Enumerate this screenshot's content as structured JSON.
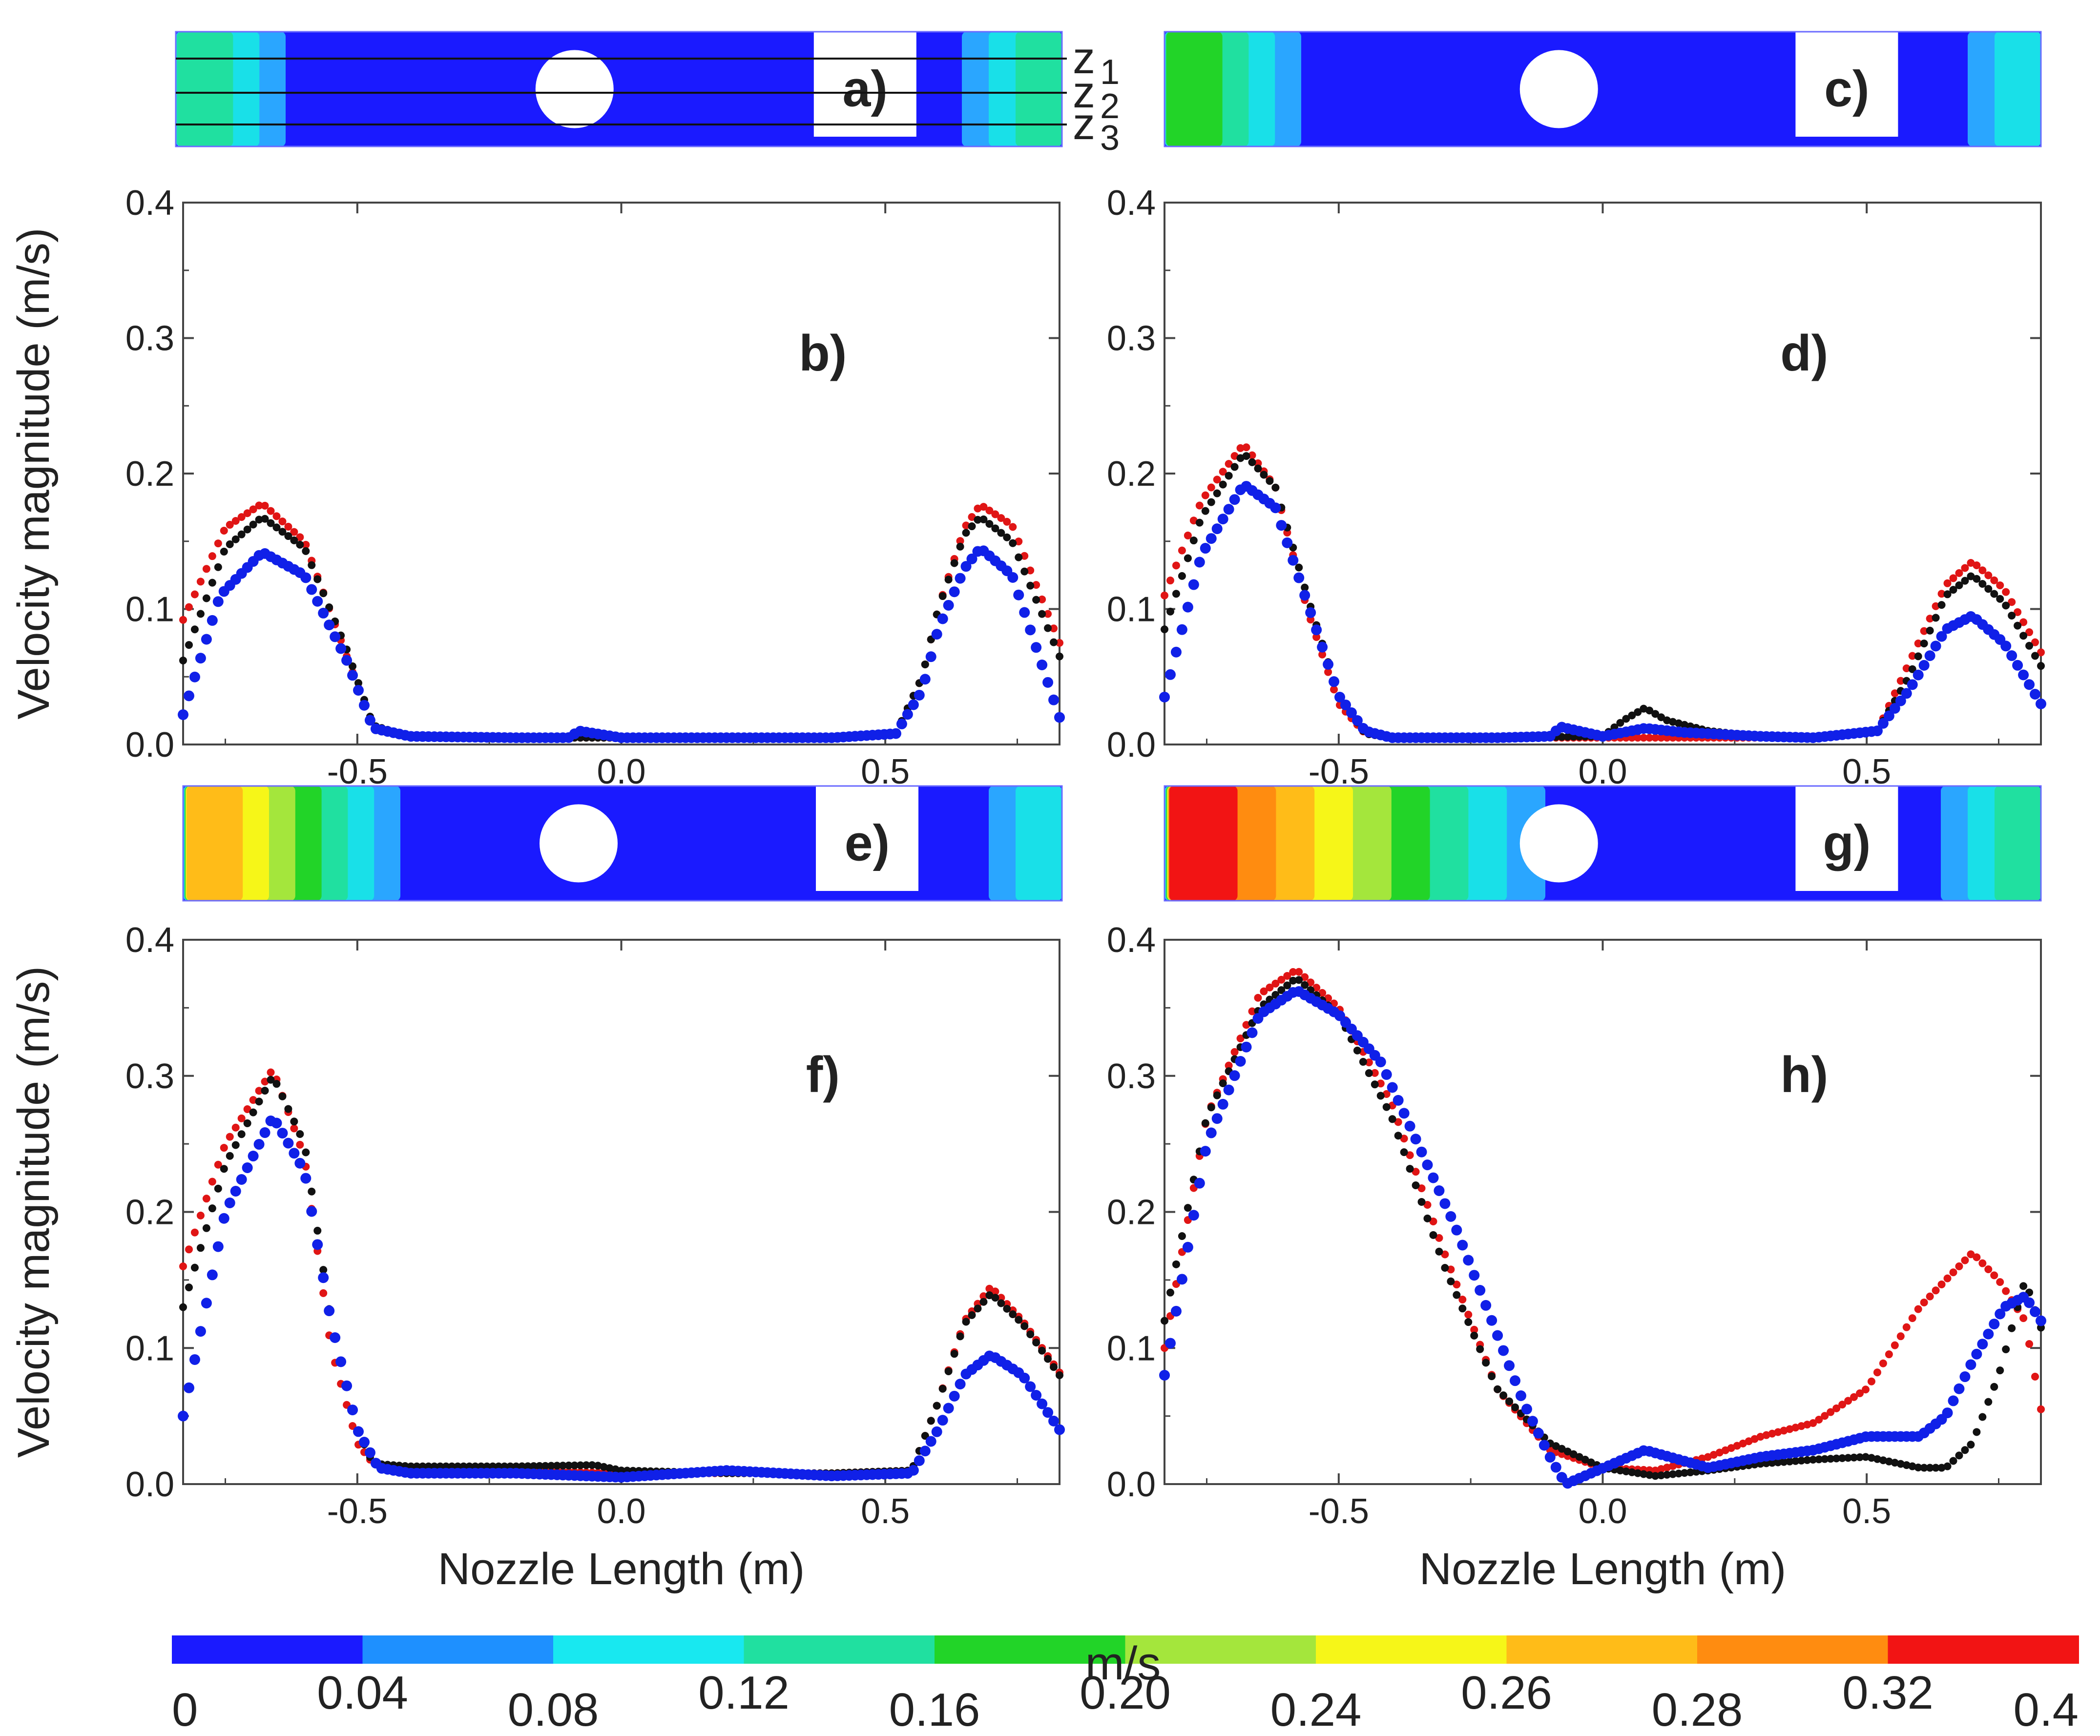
{
  "colors": {
    "blue": "#1020e8",
    "red": "#e01515",
    "black": "#111111",
    "frame": "#444444"
  },
  "colormap": {
    "unit": "m/s",
    "ticks": [
      "0",
      "0.04",
      "0.08",
      "0.12",
      "0.16",
      "0.20",
      "0.24",
      "0.26",
      "0.28",
      "0.32",
      "0.4"
    ],
    "colors": [
      "#1a1aff",
      "#1e90ff",
      "#18e8f0",
      "#20e0a0",
      "#22d428",
      "#a4e63c",
      "#f6f618",
      "#ffbc18",
      "#ff8c10",
      "#f21414"
    ]
  },
  "contours": [
    {
      "label": "a)",
      "zlabels": [
        "z",
        "z",
        "z"
      ],
      "zsub": [
        "1",
        "2",
        "3"
      ],
      "left_bands": [
        "#2aa6ff",
        "#19e0e8",
        "#20e0a0"
      ],
      "right_bands": [
        "#2aa6ff",
        "#19e0e8",
        "#20e0a0"
      ]
    },
    {
      "label": "c)",
      "left_bands": [
        "#2aa6ff",
        "#19e0e8",
        "#20e0a0",
        "#22d428"
      ],
      "right_bands": [
        "#2aa6ff",
        "#19e0e8"
      ]
    },
    {
      "label": "e)",
      "left_bands": [
        "#2aa6ff",
        "#19e0e8",
        "#20e0a0",
        "#22d428",
        "#a4e63c",
        "#f6f618",
        "#ffbc18"
      ],
      "right_bands": [
        "#2aa6ff",
        "#19e0e8"
      ]
    },
    {
      "label": "g)",
      "left_bands": [
        "#2aa6ff",
        "#19e0e8",
        "#20e0a0",
        "#22d428",
        "#a4e63c",
        "#f6f618",
        "#ffbc18",
        "#ff8c10",
        "#f21414"
      ],
      "right_bands": [
        "#2aa6ff",
        "#19e0e8",
        "#20e0a0"
      ]
    }
  ],
  "chart_data": [
    {
      "type": "scatter",
      "panel": "b)",
      "xlabel": "",
      "ylabel": "Velocity magnitude (m/s)",
      "xlim": [
        -0.83,
        0.83
      ],
      "ylim": [
        0,
        0.4
      ],
      "xticks": [
        "-0.5",
        "0.0",
        "0.5"
      ],
      "yticks": [
        "0.0",
        "0.1",
        "0.2",
        "0.3",
        "0.4"
      ],
      "series": [
        {
          "color": "red",
          "x": [
            -0.83,
            -0.75,
            -0.68,
            -0.6,
            -0.52,
            -0.47,
            -0.4,
            -0.2,
            0,
            0.2,
            0.4,
            0.52,
            0.57,
            0.6,
            0.65,
            0.68,
            0.74,
            0.83
          ],
          "y": [
            0.092,
            0.16,
            0.178,
            0.15,
            0.065,
            0.012,
            0.006,
            0.005,
            0.005,
            0.005,
            0.005,
            0.008,
            0.05,
            0.1,
            0.16,
            0.177,
            0.162,
            0.075
          ]
        },
        {
          "color": "black",
          "x": [
            -0.83,
            -0.75,
            -0.68,
            -0.6,
            -0.52,
            -0.47,
            -0.4,
            -0.2,
            0,
            0.2,
            0.4,
            0.52,
            0.57,
            0.6,
            0.65,
            0.68,
            0.74,
            0.83
          ],
          "y": [
            0.062,
            0.145,
            0.168,
            0.145,
            0.07,
            0.014,
            0.006,
            0.005,
            0.005,
            0.005,
            0.005,
            0.008,
            0.05,
            0.1,
            0.155,
            0.168,
            0.15,
            0.065
          ]
        },
        {
          "color": "blue",
          "x": [
            -0.83,
            -0.76,
            -0.68,
            -0.6,
            -0.52,
            -0.47,
            -0.4,
            -0.2,
            -0.1,
            -0.08,
            0,
            0.2,
            0.4,
            0.52,
            0.57,
            0.6,
            0.65,
            0.68,
            0.74,
            0.83
          ],
          "y": [
            0.022,
            0.11,
            0.142,
            0.125,
            0.062,
            0.012,
            0.006,
            0.005,
            0.005,
            0.01,
            0.005,
            0.005,
            0.005,
            0.008,
            0.04,
            0.085,
            0.13,
            0.145,
            0.125,
            0.02
          ]
        }
      ]
    },
    {
      "type": "scatter",
      "panel": "d)",
      "xlabel": "",
      "ylabel": "",
      "xlim": [
        -0.83,
        0.83
      ],
      "ylim": [
        0,
        0.4
      ],
      "xticks": [
        "-0.5",
        "0.0",
        "0.5"
      ],
      "yticks": [
        "0.0",
        "0.1",
        "0.2",
        "0.3",
        "0.4"
      ],
      "series": [
        {
          "color": "red",
          "x": [
            -0.83,
            -0.76,
            -0.68,
            -0.62,
            -0.56,
            -0.5,
            -0.45,
            -0.4,
            -0.2,
            0,
            0.2,
            0.4,
            0.52,
            0.58,
            0.65,
            0.7,
            0.76,
            0.83
          ],
          "y": [
            0.11,
            0.18,
            0.222,
            0.19,
            0.1,
            0.03,
            0.008,
            0.005,
            0.005,
            0.005,
            0.005,
            0.005,
            0.01,
            0.06,
            0.118,
            0.135,
            0.115,
            0.068
          ]
        },
        {
          "color": "black",
          "x": [
            -0.83,
            -0.76,
            -0.68,
            -0.62,
            -0.56,
            -0.5,
            -0.45,
            -0.4,
            -0.2,
            0,
            0.04,
            0.08,
            0.12,
            0.2,
            0.3,
            0.4,
            0.52,
            0.58,
            0.65,
            0.7,
            0.76,
            0.83
          ],
          "y": [
            0.085,
            0.168,
            0.215,
            0.19,
            0.11,
            0.036,
            0.008,
            0.005,
            0.005,
            0.006,
            0.018,
            0.027,
            0.018,
            0.01,
            0.006,
            0.005,
            0.01,
            0.05,
            0.11,
            0.125,
            0.105,
            0.058
          ]
        },
        {
          "color": "blue",
          "x": [
            -0.83,
            -0.76,
            -0.68,
            -0.62,
            -0.56,
            -0.5,
            -0.45,
            -0.4,
            -0.2,
            -0.1,
            -0.08,
            0,
            0.08,
            0.15,
            0.3,
            0.4,
            0.52,
            0.58,
            0.65,
            0.7,
            0.76,
            0.83
          ],
          "y": [
            0.035,
            0.14,
            0.192,
            0.175,
            0.105,
            0.036,
            0.01,
            0.005,
            0.005,
            0.006,
            0.013,
            0.006,
            0.012,
            0.009,
            0.006,
            0.005,
            0.01,
            0.04,
            0.085,
            0.095,
            0.075,
            0.03
          ]
        }
      ]
    },
    {
      "type": "scatter",
      "panel": "f)",
      "xlabel": "Nozzle Length (m)",
      "ylabel": "Velocity magnitude (m/s)",
      "xlim": [
        -0.83,
        0.83
      ],
      "ylim": [
        0,
        0.4
      ],
      "xticks": [
        "-0.5",
        "0.0",
        "0.5"
      ],
      "yticks": [
        "0.0",
        "0.1",
        "0.2",
        "0.3",
        "0.4"
      ],
      "series": [
        {
          "color": "red",
          "x": [
            -0.83,
            -0.75,
            -0.66,
            -0.6,
            -0.55,
            -0.5,
            -0.47,
            -0.4,
            -0.2,
            0,
            0.2,
            0.4,
            0.55,
            0.6,
            0.65,
            0.7,
            0.76,
            0.83
          ],
          "y": [
            0.16,
            0.25,
            0.305,
            0.24,
            0.1,
            0.03,
            0.015,
            0.012,
            0.01,
            0.008,
            0.008,
            0.008,
            0.01,
            0.06,
            0.12,
            0.145,
            0.12,
            0.082
          ]
        },
        {
          "color": "black",
          "x": [
            -0.83,
            -0.75,
            -0.66,
            -0.6,
            -0.55,
            -0.5,
            -0.47,
            -0.4,
            -0.2,
            -0.05,
            0,
            0.2,
            0.4,
            0.55,
            0.6,
            0.65,
            0.7,
            0.76,
            0.83
          ],
          "y": [
            0.13,
            0.235,
            0.3,
            0.25,
            0.12,
            0.04,
            0.015,
            0.013,
            0.013,
            0.014,
            0.01,
            0.008,
            0.008,
            0.01,
            0.06,
            0.118,
            0.14,
            0.118,
            0.08
          ]
        },
        {
          "color": "blue",
          "x": [
            -0.83,
            -0.75,
            -0.66,
            -0.6,
            -0.55,
            -0.5,
            -0.46,
            -0.4,
            -0.2,
            0,
            0.2,
            0.4,
            0.55,
            0.6,
            0.65,
            0.7,
            0.76,
            0.83
          ],
          "y": [
            0.05,
            0.2,
            0.27,
            0.23,
            0.12,
            0.04,
            0.012,
            0.008,
            0.008,
            0.005,
            0.01,
            0.006,
            0.008,
            0.04,
            0.08,
            0.095,
            0.08,
            0.04
          ]
        }
      ]
    },
    {
      "type": "scatter",
      "panel": "h)",
      "xlabel": "Nozzle Length (m)",
      "ylabel": "",
      "xlim": [
        -0.83,
        0.83
      ],
      "ylim": [
        0,
        0.4
      ],
      "xticks": [
        "-0.5",
        "0.0",
        "0.5"
      ],
      "yticks": [
        "0.0",
        "0.1",
        "0.2",
        "0.3",
        "0.4"
      ],
      "series": [
        {
          "color": "red",
          "x": [
            -0.83,
            -0.75,
            -0.65,
            -0.58,
            -0.5,
            -0.4,
            -0.3,
            -0.2,
            -0.1,
            0,
            0.1,
            0.2,
            0.3,
            0.4,
            0.5,
            0.6,
            0.7,
            0.75,
            0.8,
            0.83
          ],
          "y": [
            0.1,
            0.27,
            0.36,
            0.378,
            0.35,
            0.28,
            0.17,
            0.07,
            0.025,
            0.012,
            0.01,
            0.02,
            0.035,
            0.045,
            0.07,
            0.13,
            0.17,
            0.15,
            0.12,
            0.055
          ]
        },
        {
          "color": "black",
          "x": [
            -0.83,
            -0.75,
            -0.65,
            -0.58,
            -0.5,
            -0.4,
            -0.3,
            -0.2,
            -0.1,
            0,
            0.1,
            0.2,
            0.3,
            0.4,
            0.5,
            0.6,
            0.65,
            0.7,
            0.75,
            0.8,
            0.83
          ],
          "y": [
            0.12,
            0.27,
            0.35,
            0.372,
            0.345,
            0.27,
            0.16,
            0.07,
            0.03,
            0.012,
            0.006,
            0.01,
            0.015,
            0.018,
            0.02,
            0.012,
            0.012,
            0.03,
            0.08,
            0.15,
            0.115
          ]
        },
        {
          "color": "blue",
          "x": [
            -0.83,
            -0.75,
            -0.65,
            -0.58,
            -0.5,
            -0.42,
            -0.35,
            -0.28,
            -0.2,
            -0.15,
            -0.1,
            -0.07,
            0.08,
            0.2,
            0.3,
            0.4,
            0.5,
            0.6,
            0.65,
            0.7,
            0.76,
            0.8,
            0.83
          ],
          "y": [
            0.08,
            0.25,
            0.345,
            0.363,
            0.345,
            0.31,
            0.25,
            0.19,
            0.11,
            0.06,
            0.02,
            0.0,
            0.025,
            0.012,
            0.02,
            0.025,
            0.035,
            0.035,
            0.05,
            0.09,
            0.13,
            0.138,
            0.12
          ]
        }
      ]
    }
  ],
  "panels_text": [
    "b)",
    "d)",
    "f)",
    "h)"
  ]
}
